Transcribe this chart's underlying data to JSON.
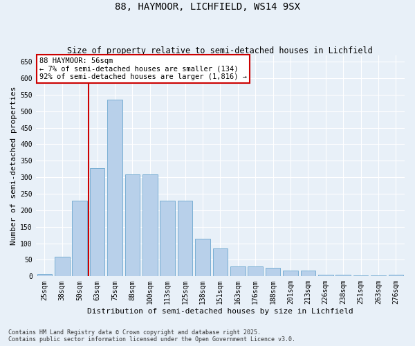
{
  "title": "88, HAYMOOR, LICHFIELD, WS14 9SX",
  "subtitle": "Size of property relative to semi-detached houses in Lichfield",
  "xlabel": "Distribution of semi-detached houses by size in Lichfield",
  "ylabel": "Number of semi-detached properties",
  "categories": [
    "25sqm",
    "38sqm",
    "50sqm",
    "63sqm",
    "75sqm",
    "88sqm",
    "100sqm",
    "113sqm",
    "125sqm",
    "138sqm",
    "151sqm",
    "163sqm",
    "176sqm",
    "188sqm",
    "201sqm",
    "213sqm",
    "226sqm",
    "238sqm",
    "251sqm",
    "263sqm",
    "276sqm"
  ],
  "values": [
    8,
    60,
    230,
    328,
    535,
    308,
    308,
    230,
    230,
    113,
    85,
    30,
    30,
    25,
    18,
    18,
    5,
    5,
    3,
    2,
    4
  ],
  "bar_color": "#b8d0ea",
  "bar_edge_color": "#7aafd4",
  "vline_color": "#cc0000",
  "vline_x": 2.5,
  "annotation_title": "88 HAYMOOR: 56sqm",
  "annotation_line1": "← 7% of semi-detached houses are smaller (134)",
  "annotation_line2": "92% of semi-detached houses are larger (1,816) →",
  "annotation_box_color": "white",
  "annotation_box_edge": "#cc0000",
  "ylim": [
    0,
    670
  ],
  "yticks": [
    0,
    50,
    100,
    150,
    200,
    250,
    300,
    350,
    400,
    450,
    500,
    550,
    600,
    650
  ],
  "footnote1": "Contains HM Land Registry data © Crown copyright and database right 2025.",
  "footnote2": "Contains public sector information licensed under the Open Government Licence v3.0.",
  "bg_color": "#e8f0f8",
  "title_fontsize": 10,
  "subtitle_fontsize": 8.5,
  "tick_fontsize": 7,
  "label_fontsize": 8,
  "footnote_fontsize": 6,
  "ann_fontsize": 7.5
}
